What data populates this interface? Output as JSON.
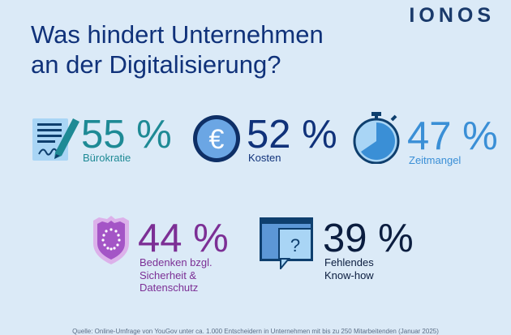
{
  "brand": {
    "logo": "IONOS"
  },
  "title": {
    "line1": "Was hindert Unternehmen",
    "line2": "an der Digitalisierung?"
  },
  "stats": [
    {
      "percent": "55 %",
      "label": "Bürokratie",
      "icon": "document-signature-icon",
      "color": "#1e8a95"
    },
    {
      "percent": "52 %",
      "label": "Kosten",
      "icon": "euro-coin-icon",
      "color": "#10327a"
    },
    {
      "percent": "47 %",
      "label": "Zeitmangel",
      "icon": "stopwatch-icon",
      "color": "#3a8fd6"
    },
    {
      "percent": "44 %",
      "label": "Bedenken bzgl.\nSicherheit &\nDatenschutz",
      "icon": "eu-shield-icon",
      "color": "#7c2f95"
    },
    {
      "percent": "39 %",
      "label": "Fehlendes\nKnow-how",
      "icon": "question-window-icon",
      "color": "#0b1d3f"
    }
  ],
  "footer": {
    "source": "Quelle: Online-Umfrage von YouGov unter ca. 1.000 Entscheidern in Unternehmen mit bis zu 250 Mitarbeitenden (Januar 2025)"
  }
}
